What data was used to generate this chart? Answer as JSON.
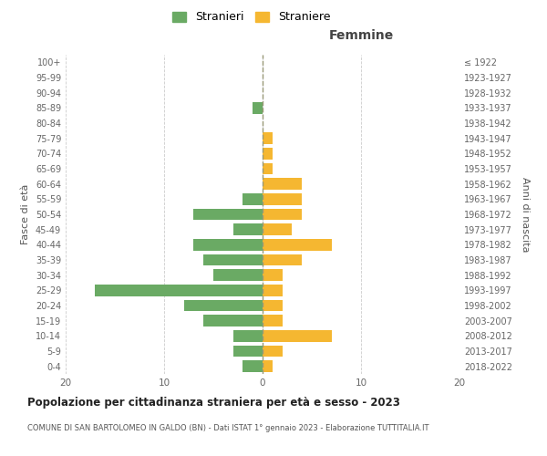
{
  "age_groups": [
    "0-4",
    "5-9",
    "10-14",
    "15-19",
    "20-24",
    "25-29",
    "30-34",
    "35-39",
    "40-44",
    "45-49",
    "50-54",
    "55-59",
    "60-64",
    "65-69",
    "70-74",
    "75-79",
    "80-84",
    "85-89",
    "90-94",
    "95-99",
    "100+"
  ],
  "birth_years": [
    "2018-2022",
    "2013-2017",
    "2008-2012",
    "2003-2007",
    "1998-2002",
    "1993-1997",
    "1988-1992",
    "1983-1987",
    "1978-1982",
    "1973-1977",
    "1968-1972",
    "1963-1967",
    "1958-1962",
    "1953-1957",
    "1948-1952",
    "1943-1947",
    "1938-1942",
    "1933-1937",
    "1928-1932",
    "1923-1927",
    "≤ 1922"
  ],
  "males": [
    2,
    3,
    3,
    6,
    8,
    17,
    5,
    6,
    7,
    3,
    7,
    2,
    0,
    0,
    0,
    0,
    0,
    1,
    0,
    0,
    0
  ],
  "females": [
    1,
    2,
    7,
    2,
    2,
    2,
    2,
    4,
    7,
    3,
    4,
    4,
    4,
    1,
    1,
    1,
    0,
    0,
    0,
    0,
    0
  ],
  "male_color": "#6aaa64",
  "female_color": "#f5b731",
  "background_color": "#ffffff",
  "grid_color": "#cccccc",
  "center_line_color": "#aaaaaa",
  "title": "Popolazione per cittadinanza straniera per età e sesso - 2023",
  "subtitle": "COMUNE DI SAN BARTOLOMEO IN GALDO (BN) - Dati ISTAT 1° gennaio 2023 - Elaborazione TUTTITALIA.IT",
  "xlabel_right": "Femmine",
  "ylabel_left": "Fasce di età",
  "ylabel_right": "Anni di nascita",
  "legend_stranieri": "Stranieri",
  "legend_straniere": "Straniere",
  "xlim": 20,
  "bar_height": 0.75
}
